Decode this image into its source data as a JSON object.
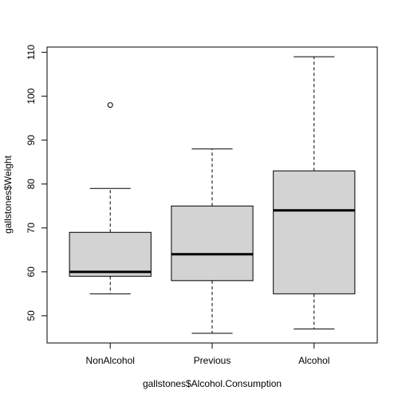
{
  "chart_data": {
    "type": "boxplot",
    "title": "",
    "xlabel": "gallstones$Alcohol.Consumption",
    "ylabel": "gallstones$Weight",
    "ylim": [
      43.8,
      111.2
    ],
    "yticks": [
      50,
      60,
      70,
      80,
      90,
      100,
      110
    ],
    "grid": false,
    "box_color": "#d3d3d3",
    "line_color": "#000000",
    "categories": [
      "NonAlcohol",
      "Previous",
      "Alcohol"
    ],
    "boxes": [
      {
        "category": "NonAlcohol",
        "whisker_low": 55,
        "q1": 59,
        "median": 60,
        "q3": 69,
        "whisker_high": 79,
        "outliers": [
          98
        ]
      },
      {
        "category": "Previous",
        "whisker_low": 46,
        "q1": 58,
        "median": 64,
        "q3": 75,
        "whisker_high": 88,
        "outliers": []
      },
      {
        "category": "Alcohol",
        "whisker_low": 47,
        "q1": 55,
        "median": 74,
        "q3": 83,
        "whisker_high": 109,
        "outliers": []
      }
    ]
  }
}
